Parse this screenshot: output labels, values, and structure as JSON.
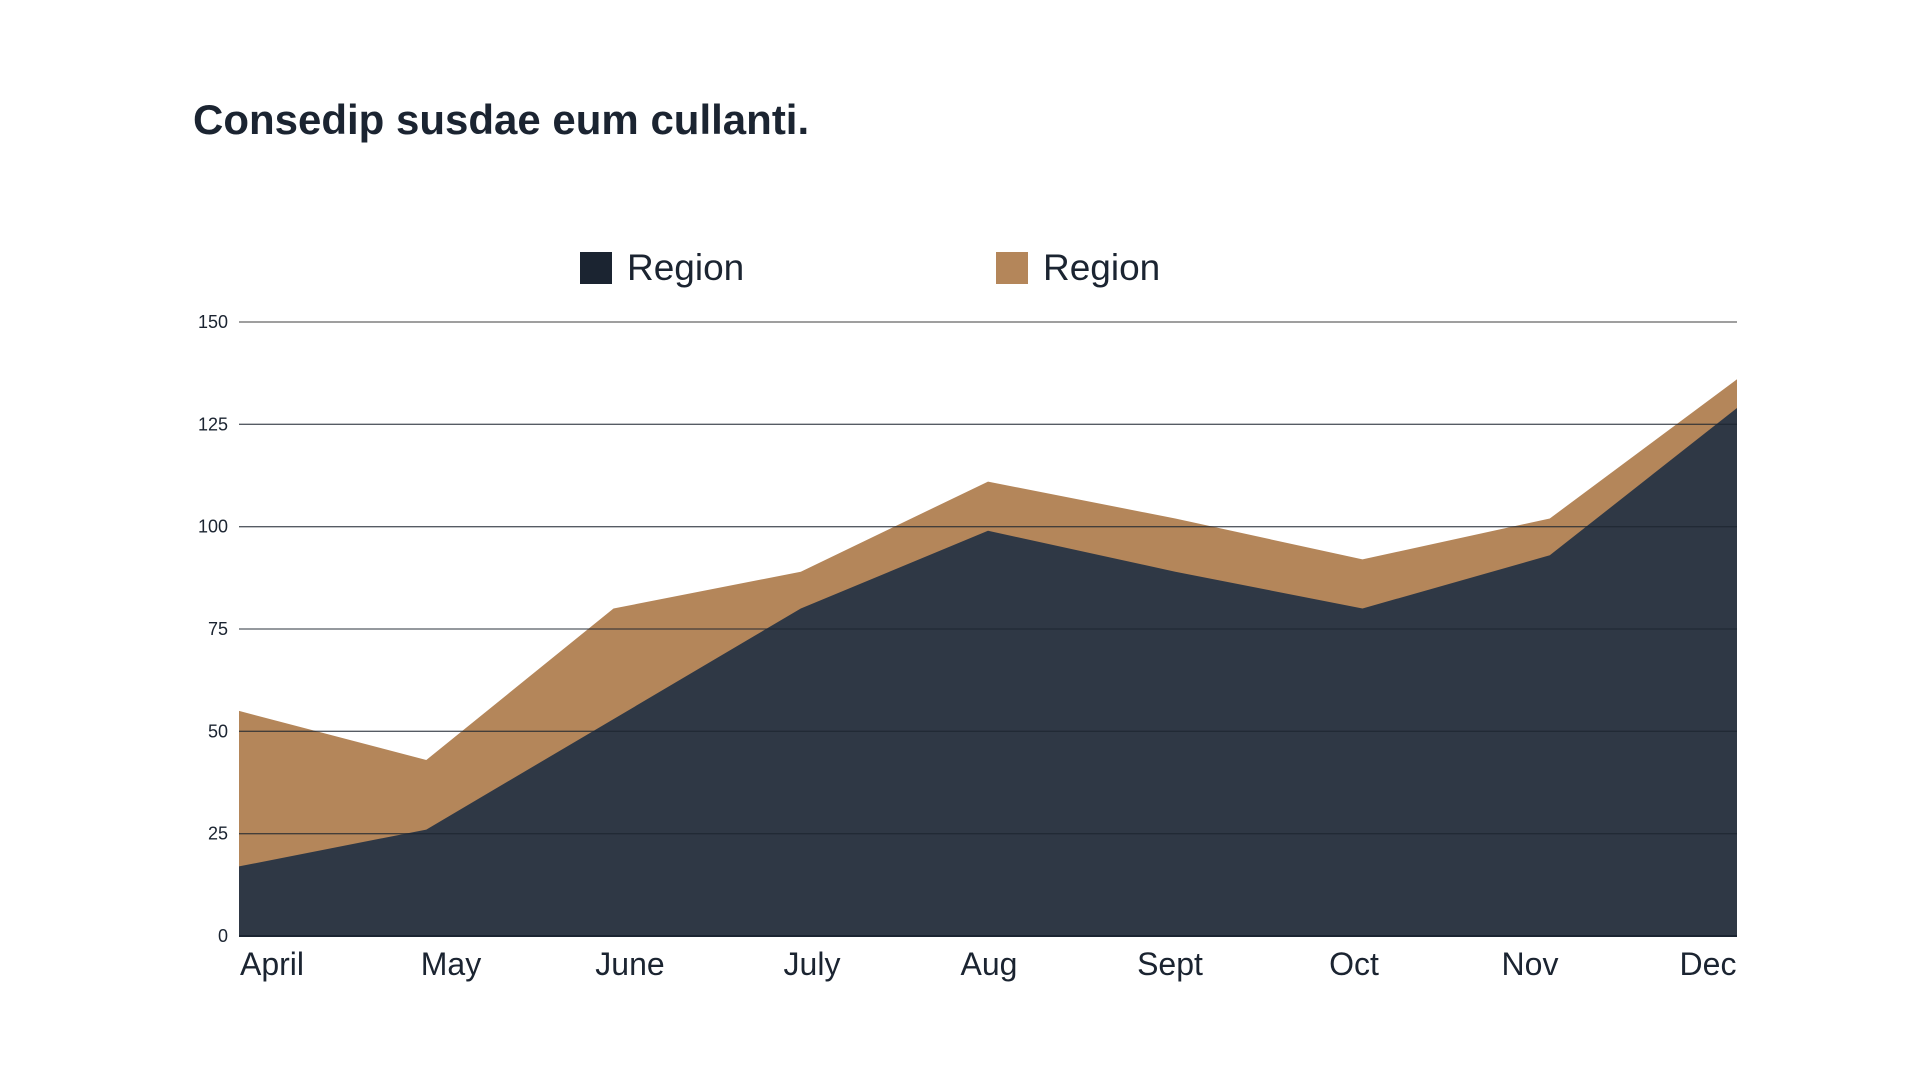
{
  "chart_data": {
    "type": "area",
    "stacked": false,
    "title": "Consedip susdae eum cullanti.",
    "xlabel": "",
    "ylabel": "",
    "categories": [
      "April",
      "May",
      "June",
      "July",
      "Aug",
      "Sept",
      "Oct",
      "Nov",
      "Dec"
    ],
    "ylim": [
      0,
      150
    ],
    "yticks": [
      0,
      25,
      50,
      75,
      100,
      125,
      150
    ],
    "grid": true,
    "legend_position": "top-center",
    "series": [
      {
        "name": "Region",
        "color": "#b4865a",
        "values": [
          55,
          43,
          80,
          89,
          111,
          102,
          92,
          102,
          136
        ]
      },
      {
        "name": "Region",
        "color": "#2f3845",
        "values": [
          17,
          26,
          53,
          80,
          99,
          89,
          80,
          93,
          129
        ]
      }
    ]
  },
  "colors": {
    "legend_swatch_dark": "#1b2431",
    "text": "#1b2431",
    "gridline": "#555555"
  }
}
